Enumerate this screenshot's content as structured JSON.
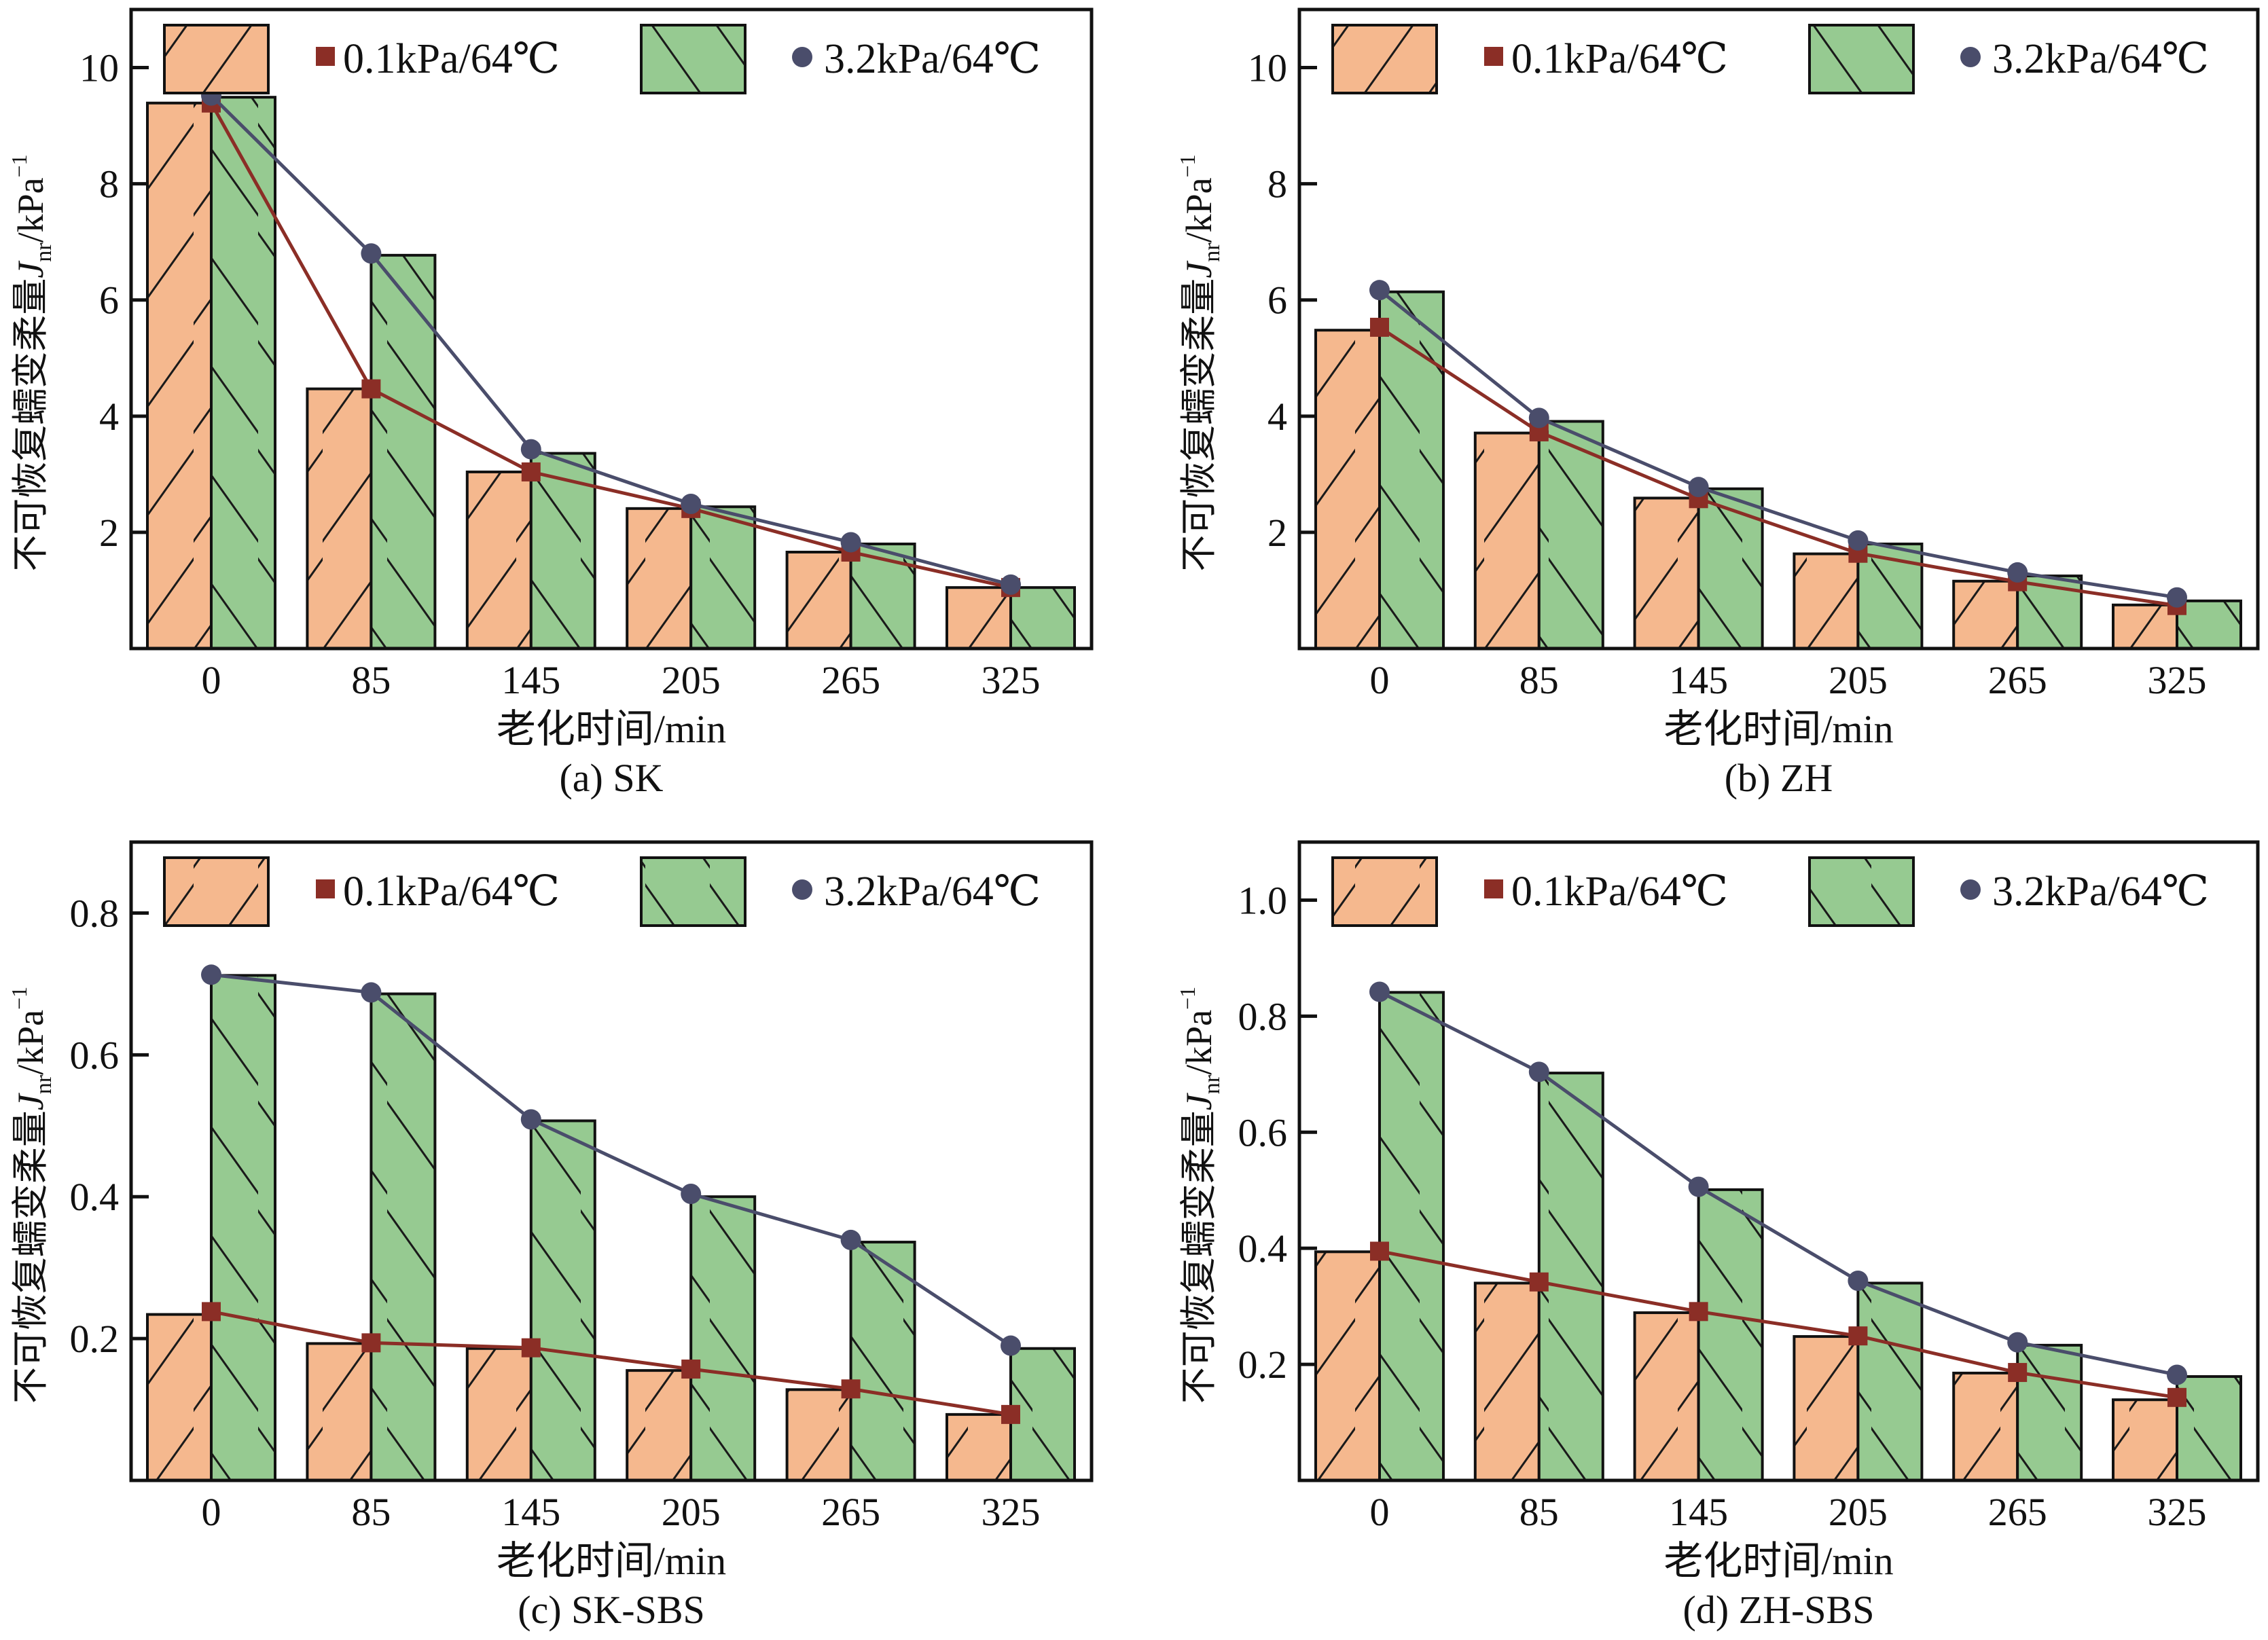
{
  "figure": {
    "legend": {
      "series_bar_1": "0.1kPa/64℃",
      "series_bar_2": "3.2kPa/64℃",
      "series_line_1": "0.1kPa/64℃",
      "series_line_2": "3.2kPa/64℃"
    },
    "colors": {
      "bar_low_stress": "#F5B88E",
      "bar_high_stress": "#96CA91",
      "line_low_stress": "#8B2E26",
      "line_high_stress": "#4A4D6B",
      "axis": "#111111"
    }
  },
  "chart_data": [
    {
      "id": "a",
      "type": "bar",
      "combo": "bar+line",
      "title": "(a) SK",
      "xlabel": "老化时间/min",
      "ylabel": "不可恢复蠕变柔量J_nr/kPa^-1",
      "ylabel_parts": {
        "cn": "不可恢复蠕变柔量",
        "sym": "J",
        "sub": "nr",
        "unit": "/kPa",
        "sup": "−1"
      },
      "categories": [
        "0",
        "85",
        "145",
        "205",
        "265",
        "325"
      ],
      "ylim": [
        0,
        11
      ],
      "yticks": [
        2,
        4,
        6,
        8,
        10
      ],
      "ytick_labels": [
        "2",
        "4",
        "6",
        "8",
        "10"
      ],
      "grid": false,
      "legend_position": "top",
      "series": [
        {
          "name": "0.1kPa/64℃",
          "kind": "bar",
          "hatch": "/",
          "values": [
            9.39,
            4.47,
            3.04,
            2.41,
            1.66,
            1.05
          ]
        },
        {
          "name": "3.2kPa/64℃",
          "kind": "bar",
          "hatch": "\\",
          "values": [
            9.49,
            6.77,
            3.36,
            2.44,
            1.8,
            1.05
          ]
        },
        {
          "name": "0.1kPa/64℃",
          "kind": "line",
          "marker": "square",
          "values": [
            9.39,
            4.47,
            3.04,
            2.41,
            1.66,
            1.05
          ]
        },
        {
          "name": "3.2kPa/64℃",
          "kind": "line",
          "marker": "circle",
          "values": [
            9.52,
            6.8,
            3.43,
            2.49,
            1.83,
            1.1
          ]
        }
      ]
    },
    {
      "id": "b",
      "type": "bar",
      "combo": "bar+line",
      "title": "(b) ZH",
      "xlabel": "老化时间/min",
      "ylabel": "不可恢复蠕变柔量J_nr/kPa^-1",
      "ylabel_parts": {
        "cn": "不可恢复蠕变柔量",
        "sym": "J",
        "sub": "nr",
        "unit": "/kPa",
        "sup": "−1"
      },
      "categories": [
        "0",
        "85",
        "145",
        "205",
        "265",
        "325"
      ],
      "ylim": [
        0,
        11
      ],
      "yticks": [
        2,
        4,
        6,
        8,
        10
      ],
      "ytick_labels": [
        "2",
        "4",
        "6",
        "8",
        "10"
      ],
      "grid": false,
      "legend_position": "top",
      "series": [
        {
          "name": "0.1kPa/64℃",
          "kind": "bar",
          "hatch": "/",
          "values": [
            5.48,
            3.71,
            2.59,
            1.63,
            1.16,
            0.75
          ]
        },
        {
          "name": "3.2kPa/64℃",
          "kind": "bar",
          "hatch": "\\",
          "values": [
            6.14,
            3.91,
            2.75,
            1.8,
            1.25,
            0.82
          ]
        },
        {
          "name": "0.1kPa/64℃",
          "kind": "line",
          "marker": "square",
          "values": [
            5.53,
            3.73,
            2.58,
            1.64,
            1.15,
            0.74
          ]
        },
        {
          "name": "3.2kPa/64℃",
          "kind": "line",
          "marker": "circle",
          "values": [
            6.17,
            3.97,
            2.78,
            1.86,
            1.31,
            0.88
          ]
        }
      ]
    },
    {
      "id": "c",
      "type": "bar",
      "combo": "bar+line",
      "title": "(c) SK-SBS",
      "xlabel": "老化时间/min",
      "ylabel": "不可恢复蠕变柔量J_nr/kPa^-1",
      "ylabel_parts": {
        "cn": "不可恢复蠕变柔量",
        "sym": "J",
        "sub": "nr",
        "unit": "/kPa",
        "sup": "−1"
      },
      "categories": [
        "0",
        "85",
        "145",
        "205",
        "265",
        "325"
      ],
      "ylim": [
        0,
        0.9
      ],
      "yticks": [
        0.2,
        0.4,
        0.6,
        0.8
      ],
      "ytick_labels": [
        "0.2",
        "0.4",
        "0.6",
        "0.8"
      ],
      "grid": false,
      "legend_position": "top",
      "series": [
        {
          "name": "0.1kPa/64℃",
          "kind": "bar",
          "hatch": "/",
          "values": [
            0.234,
            0.193,
            0.186,
            0.155,
            0.128,
            0.093
          ]
        },
        {
          "name": "3.2kPa/64℃",
          "kind": "bar",
          "hatch": "\\",
          "values": [
            0.712,
            0.686,
            0.507,
            0.4,
            0.336,
            0.186
          ]
        },
        {
          "name": "0.1kPa/64℃",
          "kind": "line",
          "marker": "square",
          "values": [
            0.238,
            0.194,
            0.187,
            0.157,
            0.129,
            0.093
          ]
        },
        {
          "name": "3.2kPa/64℃",
          "kind": "line",
          "marker": "circle",
          "values": [
            0.713,
            0.688,
            0.509,
            0.404,
            0.339,
            0.19
          ]
        }
      ]
    },
    {
      "id": "d",
      "type": "bar",
      "combo": "bar+line",
      "title": "(d) ZH-SBS",
      "xlabel": "老化时间/min",
      "ylabel": "不可恢复蠕变柔量J_nr/kPa^-1",
      "ylabel_parts": {
        "cn": "不可恢复蠕变柔量",
        "sym": "J",
        "sub": "nr",
        "unit": "/kPa",
        "sup": "−1"
      },
      "categories": [
        "0",
        "85",
        "145",
        "205",
        "265",
        "325"
      ],
      "ylim": [
        0,
        1.1
      ],
      "yticks": [
        0.2,
        0.4,
        0.6,
        0.8,
        1.0
      ],
      "ytick_labels": [
        "0.2",
        "0.4",
        "0.6",
        "0.8",
        "1.0"
      ],
      "grid": false,
      "legend_position": "top",
      "series": [
        {
          "name": "0.1kPa/64℃",
          "kind": "bar",
          "hatch": "/",
          "values": [
            0.394,
            0.34,
            0.289,
            0.248,
            0.185,
            0.139
          ]
        },
        {
          "name": "3.2kPa/64℃",
          "kind": "bar",
          "hatch": "\\",
          "values": [
            0.841,
            0.702,
            0.501,
            0.34,
            0.233,
            0.179
          ]
        },
        {
          "name": "0.1kPa/64℃",
          "kind": "line",
          "marker": "square",
          "values": [
            0.395,
            0.342,
            0.291,
            0.249,
            0.186,
            0.143
          ]
        },
        {
          "name": "3.2kPa/64℃",
          "kind": "line",
          "marker": "circle",
          "values": [
            0.842,
            0.704,
            0.506,
            0.344,
            0.238,
            0.182
          ]
        }
      ]
    }
  ]
}
